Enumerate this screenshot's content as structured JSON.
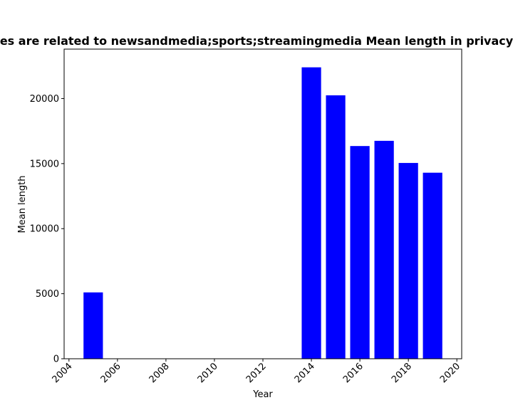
{
  "chart_data": {
    "type": "bar",
    "title": "es are related to newsandmedia;sports;streamingmedia Mean length in privacy",
    "xlabel": "Year",
    "ylabel": "Mean length",
    "x": [
      2005,
      2014,
      2015,
      2016,
      2017,
      2018,
      2019
    ],
    "values": [
      5100,
      22400,
      20250,
      16350,
      16750,
      15050,
      14300
    ],
    "xlim": [
      2003.8,
      2020.2
    ],
    "ylim": [
      0,
      23800
    ],
    "xticks": [
      "2004",
      "2006",
      "2008",
      "2010",
      "2012",
      "2014",
      "2016",
      "2018",
      "2020"
    ],
    "yticks": [
      "0",
      "5000",
      "10000",
      "15000",
      "20000"
    ],
    "bar_color": "#0000ff",
    "grid": false,
    "legend": "none"
  }
}
